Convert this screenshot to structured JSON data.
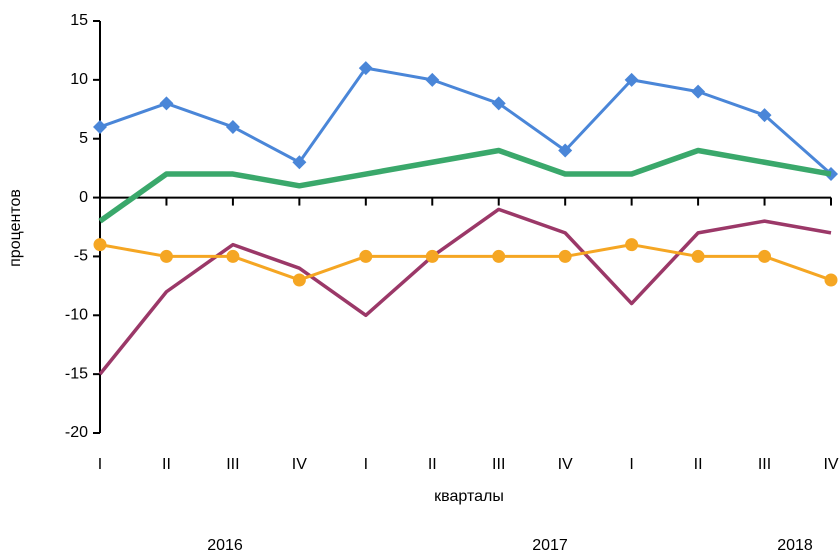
{
  "chart_data": {
    "type": "line",
    "categories": [
      "I",
      "II",
      "III",
      "IV",
      "I",
      "II",
      "III",
      "IV",
      "I",
      "II",
      "III",
      "IV"
    ],
    "year_labels": [
      "2016",
      "2017",
      "2018"
    ],
    "xlabel": "кварталы",
    "ylabel": "процентов",
    "ylim": [
      -20,
      15
    ],
    "yticks": [
      -20,
      -15,
      -10,
      -5,
      0,
      5,
      10,
      15
    ],
    "grid": false,
    "series": [
      {
        "color": "#4a86d8",
        "marker": "diamond",
        "values": [
          6,
          8,
          6,
          3,
          11,
          10,
          8,
          4,
          10,
          9,
          7,
          2
        ]
      },
      {
        "color": "#3aa86b",
        "marker": "none",
        "values": [
          -2,
          2,
          2,
          1,
          2,
          3,
          4,
          2,
          2,
          4,
          3,
          2
        ]
      },
      {
        "color": "#9b3868",
        "marker": "none",
        "values": [
          -15,
          -8,
          -4,
          -6,
          -10,
          -5,
          -1,
          -3,
          -9,
          -3,
          -2,
          -3
        ]
      },
      {
        "color": "#f5a623",
        "marker": "circle",
        "values": [
          -4,
          -5,
          -5,
          -7,
          -5,
          -5,
          -5,
          -5,
          -4,
          -5,
          -5,
          -7
        ]
      }
    ]
  }
}
